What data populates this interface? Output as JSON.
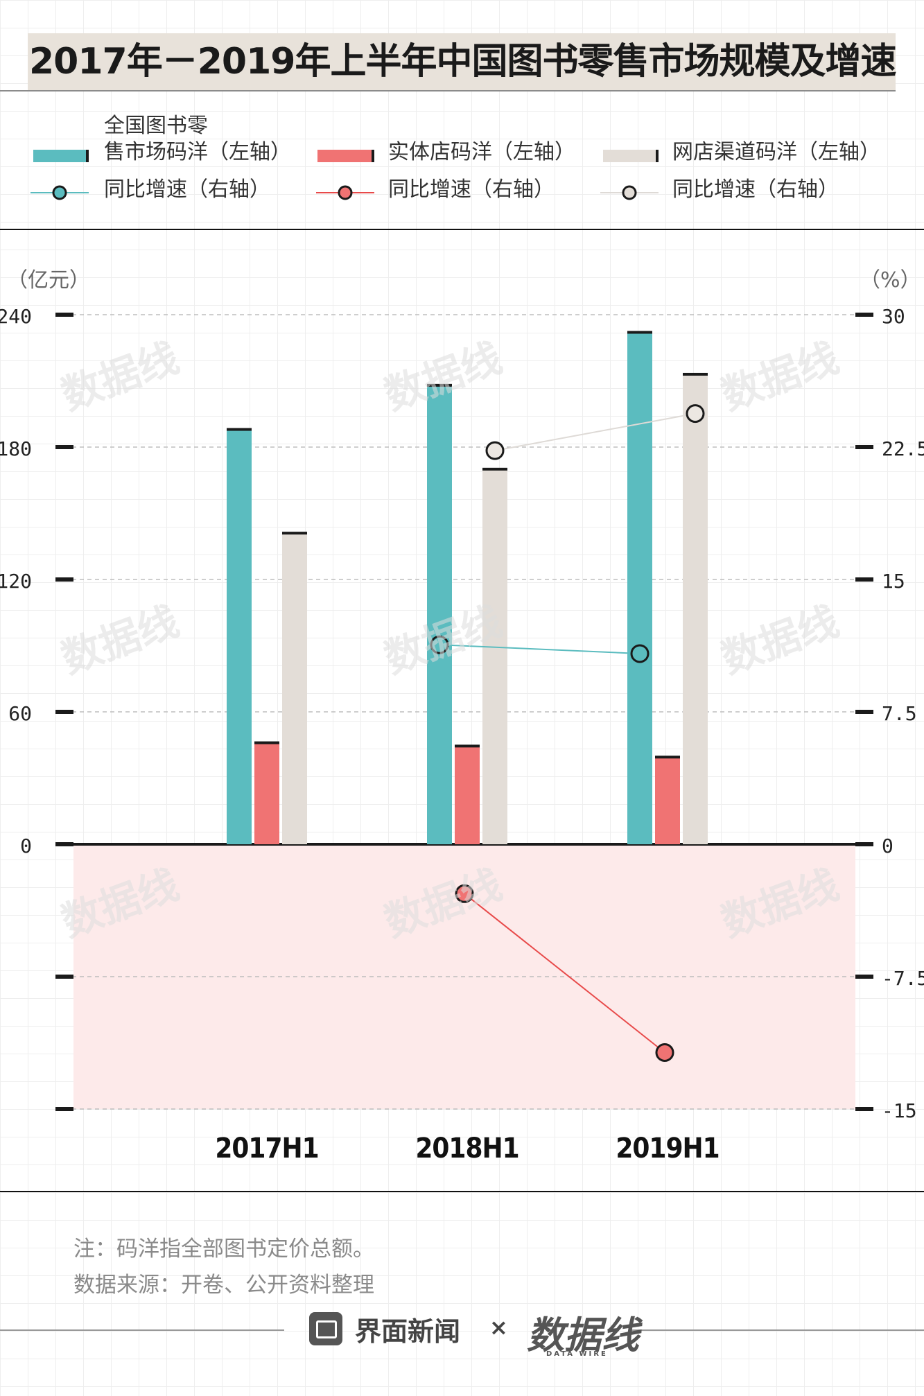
{
  "title": "2017年－2019年上半年中国图书零售市场规模及增速",
  "legend": {
    "total_line1": "全国图书零",
    "total_line2": "售市场码洋（左轴）",
    "store": "实体店码洋（左轴）",
    "online": "网店渠道码洋（左轴）",
    "growth_total": "同比增速（右轴）",
    "growth_store": "同比增速（右轴）",
    "growth_online": "同比增速（右轴）"
  },
  "colors": {
    "teal": "#5bbcbf",
    "red": "#f07373",
    "beige": "#e3ddd7",
    "negative_zone": "#fdeaea",
    "axis": "#1a1a1a"
  },
  "axis_units": {
    "left": "（亿元）",
    "right": "（%）"
  },
  "chart_data": {
    "type": "bar",
    "categories": [
      "2017H1",
      "2018H1",
      "2019H1"
    ],
    "left_axis": {
      "ylim": [
        -120,
        240
      ],
      "ticks": [
        240,
        180,
        120,
        60,
        0,
        -60,
        -120
      ],
      "tick_labels": [
        "240",
        "180",
        "120",
        "60",
        "0",
        "",
        ""
      ]
    },
    "right_axis": {
      "ylim": [
        -15,
        30
      ],
      "ticks": [
        30,
        22.5,
        15,
        7.5,
        0,
        -7.5,
        -15
      ],
      "tick_labels": [
        "30",
        "22.5",
        "15",
        "7.5",
        "0",
        "-7.5",
        "-15"
      ]
    },
    "series": [
      {
        "name": "全国图书零售市场码洋（左轴）",
        "axis": "left",
        "kind": "bar",
        "values": [
          188,
          208,
          232
        ]
      },
      {
        "name": "实体店码洋（左轴）",
        "axis": "left",
        "kind": "bar",
        "values": [
          46,
          44.5,
          39.5
        ]
      },
      {
        "name": "网店渠道码洋（左轴）",
        "axis": "left",
        "kind": "bar",
        "values": [
          141,
          170,
          213
        ]
      },
      {
        "name": "同比增速（右轴）",
        "axis": "right",
        "kind": "line",
        "color_key": "teal",
        "values": [
          null,
          11.3,
          10.8
        ]
      },
      {
        "name": "同比增速（右轴）",
        "axis": "right",
        "kind": "line",
        "color_key": "red",
        "values": [
          null,
          -2.8,
          -11.8
        ]
      },
      {
        "name": "同比增速（右轴）",
        "axis": "right",
        "kind": "line",
        "color_key": "beige",
        "values": [
          null,
          22.3,
          24.4
        ]
      }
    ],
    "grid": true
  },
  "notes": {
    "note": "注：码洋指全部图书定价总额。",
    "source": "数据来源：开卷、公开资料整理"
  },
  "footer": {
    "brand": "界面新闻",
    "times": "×",
    "watermark": "数据线",
    "watermark_sub": "DATA WIRE"
  }
}
